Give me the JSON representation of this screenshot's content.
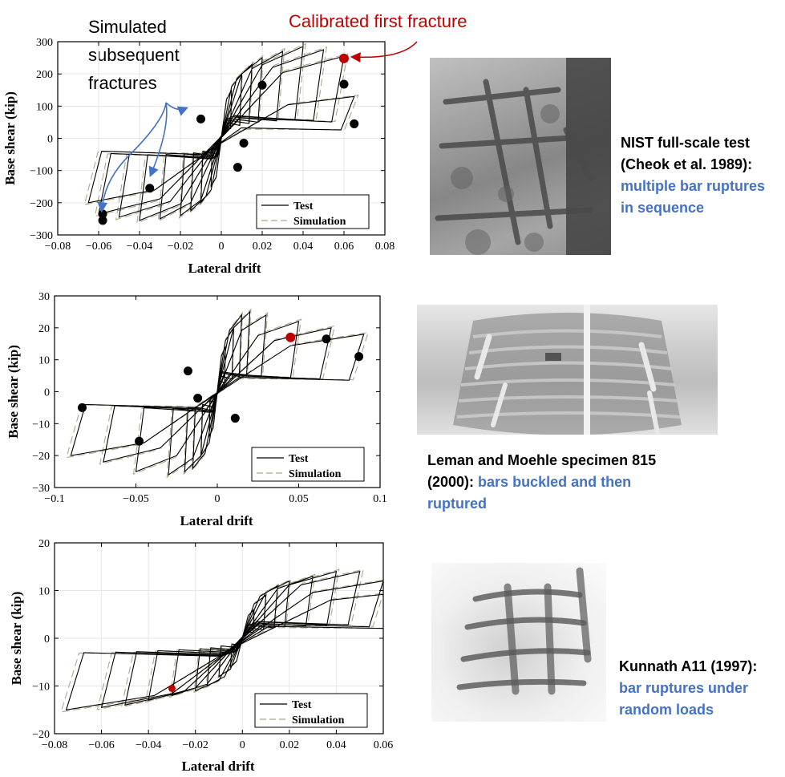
{
  "annotations": {
    "simulated": [
      "Simulated",
      "subsequent",
      "fractures"
    ],
    "calibrated": "Calibrated first fracture"
  },
  "legend": {
    "test": "Test",
    "simulation": "Simulation"
  },
  "colors": {
    "test": "#000000",
    "simulation": "#aea88c",
    "first_fracture": "#c00000",
    "accent_text": "#4472c4",
    "grid": "#e6e6e6"
  },
  "captions": [
    {
      "plain": "NIST full-scale test (Cheok et al. 1989):",
      "highlight": "multiple bar ruptures in sequence"
    },
    {
      "plain": "Leman and Moehle specimen 815 (2000):",
      "highlight": "bars buckled and then ruptured"
    },
    {
      "plain": "Kunnath A11 (1997):",
      "highlight": "bar ruptures under random loads"
    }
  ],
  "chart_data": [
    {
      "type": "line",
      "xlabel": "Lateral drift",
      "ylabel": "Base shear (kip)",
      "xlim": [
        -0.08,
        0.08
      ],
      "ylim": [
        -300,
        300
      ],
      "xticks": [
        -0.08,
        -0.06,
        -0.04,
        -0.02,
        0,
        0.02,
        0.04,
        0.06,
        0.08
      ],
      "yticks": [
        -300,
        -200,
        -100,
        0,
        100,
        200,
        300
      ],
      "xtick_labels": [
        "−0.08",
        "−0.06",
        "−0.04",
        "−0.02",
        "0",
        "0.02",
        "0.04",
        "0.06",
        "0.08"
      ],
      "ytick_labels": [
        "−300",
        "−200",
        "−100",
        "0",
        "100",
        "200",
        "300"
      ],
      "grid": true,
      "legend_position": "bottom-right",
      "cycles": [
        {
          "amp": 0.005,
          "pos": 150,
          "neg": -150
        },
        {
          "amp": 0.01,
          "pos": 200,
          "neg": -200
        },
        {
          "amp": 0.015,
          "pos": 230,
          "neg": -225
        },
        {
          "amp": 0.02,
          "pos": 250,
          "neg": -240
        },
        {
          "amp": 0.03,
          "pos": 270,
          "neg": -250
        },
        {
          "amp": 0.04,
          "pos": 285,
          "neg": -255
        },
        {
          "amp": 0.05,
          "pos": 275,
          "neg": -245
        },
        {
          "amp": 0.06,
          "pos": 255,
          "neg": -235
        },
        {
          "amp": 0.065,
          "pos": 130,
          "neg": -200
        }
      ],
      "fracture_points": [
        {
          "x": -0.058,
          "y": -235
        },
        {
          "x": -0.058,
          "y": -255
        },
        {
          "x": -0.035,
          "y": -155
        },
        {
          "x": -0.01,
          "y": 60
        },
        {
          "x": 0.008,
          "y": -90
        },
        {
          "x": 0.011,
          "y": -15
        },
        {
          "x": 0.02,
          "y": 165
        },
        {
          "x": 0.06,
          "y": 168
        },
        {
          "x": 0.065,
          "y": 45
        }
      ],
      "first_fracture": {
        "x": 0.06,
        "y": 248
      }
    },
    {
      "type": "line",
      "xlabel": "Lateral drift",
      "ylabel": "Base shear (kip)",
      "xlim": [
        -0.1,
        0.1
      ],
      "ylim": [
        -30,
        30
      ],
      "xticks": [
        -0.1,
        -0.05,
        0,
        0.05,
        0.1
      ],
      "yticks": [
        -30,
        -20,
        -10,
        0,
        10,
        20,
        30
      ],
      "xtick_labels": [
        "−0.1",
        "−0.05",
        "0",
        "0.05",
        "0.1"
      ],
      "ytick_labels": [
        "−30",
        "−20",
        "−10",
        "0",
        "10",
        "20",
        "30"
      ],
      "grid": false,
      "legend_position": "bottom-right",
      "cycles": [
        {
          "amp": 0.005,
          "pos": 14,
          "neg": -14
        },
        {
          "amp": 0.01,
          "pos": 20,
          "neg": -20
        },
        {
          "amp": 0.015,
          "pos": 24,
          "neg": -24
        },
        {
          "amp": 0.02,
          "pos": 25,
          "neg": -25
        },
        {
          "amp": 0.03,
          "pos": 24,
          "neg": -26
        },
        {
          "amp": 0.05,
          "pos": 22,
          "neg": -25
        },
        {
          "amp": 0.07,
          "pos": 20,
          "neg": -22
        },
        {
          "amp": 0.09,
          "pos": 18,
          "neg": -20
        }
      ],
      "fracture_points": [
        {
          "x": -0.083,
          "y": -5
        },
        {
          "x": -0.048,
          "y": -15.5
        },
        {
          "x": -0.018,
          "y": 6.5
        },
        {
          "x": -0.012,
          "y": -2
        },
        {
          "x": 0.011,
          "y": -8.3
        },
        {
          "x": 0.067,
          "y": 16.5
        },
        {
          "x": 0.087,
          "y": 11
        }
      ],
      "first_fracture": {
        "x": 0.045,
        "y": 17
      }
    },
    {
      "type": "line",
      "xlabel": "Lateral drift",
      "ylabel": "Base shear (kip)",
      "xlim": [
        -0.08,
        0.06
      ],
      "ylim": [
        -20,
        20
      ],
      "xticks": [
        -0.08,
        -0.06,
        -0.04,
        -0.02,
        0,
        0.02,
        0.04,
        0.06
      ],
      "yticks": [
        -20,
        -10,
        0,
        10,
        20
      ],
      "xtick_labels": [
        "−0.08",
        "−0.06",
        "−0.04",
        "−0.02",
        "0",
        "0.02",
        "0.04",
        "0.06"
      ],
      "ytick_labels": [
        "−20",
        "−10",
        "0",
        "10",
        "20"
      ],
      "grid": true,
      "legend_position": "bottom-right",
      "cycles": [
        {
          "amp": 0.005,
          "pos": 6,
          "neg": -6
        },
        {
          "amp": 0.01,
          "pos": 9,
          "neg": -8
        },
        {
          "amp": 0.015,
          "pos": 11,
          "neg": -10
        },
        {
          "amp": 0.02,
          "pos": 12,
          "neg": -11
        },
        {
          "amp": 0.03,
          "pos": 13,
          "neg": -12
        },
        {
          "amp": 0.04,
          "pos": 14,
          "neg": -13
        },
        {
          "amp": 0.05,
          "pos": 14,
          "neg": -14
        },
        {
          "amp": 0.06,
          "pos": 12,
          "neg": -14.5
        },
        {
          "amp": 0.075,
          "pos": 10,
          "neg": -15
        }
      ],
      "fracture_points": [],
      "first_fracture": {
        "x": -0.03,
        "y": -10.5
      }
    }
  ]
}
